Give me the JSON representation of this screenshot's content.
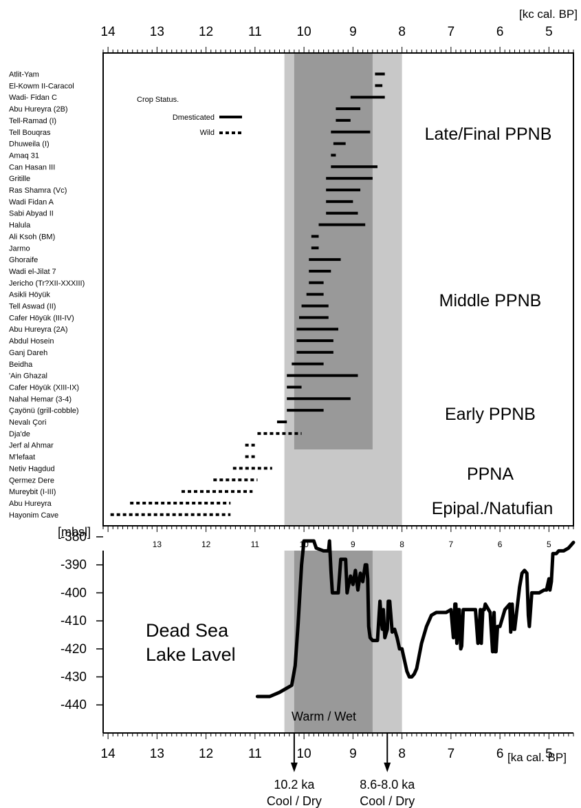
{
  "chart_data": [
    {
      "type": "range-bar",
      "top_axis": {
        "unit_label": "[kc cal. BP]",
        "ticks": [
          14,
          13,
          12,
          11,
          10,
          9,
          8,
          7,
          6,
          5
        ],
        "range": [
          14.1,
          4.5
        ],
        "reversed": true
      },
      "bottom_axis_ticks": [
        13,
        12,
        11,
        10,
        9,
        8,
        7,
        6,
        5
      ],
      "legend": {
        "title": "Crop Status.",
        "entries": [
          {
            "label": "Dmesticated",
            "style": "solid"
          },
          {
            "label": "Wild",
            "style": "dashed"
          }
        ]
      },
      "phases": [
        {
          "label": "Late/Final PPNB"
        },
        {
          "label": "Middle PPNB"
        },
        {
          "label": "Early PPNB"
        },
        {
          "label": "PPNA"
        },
        {
          "label": "Epipal./Natufian"
        }
      ],
      "shaded_bands": [
        {
          "from": 10.4,
          "to": 8.0,
          "color": "#c8c8c8"
        },
        {
          "from": 10.2,
          "to": 8.6,
          "color": "#999999",
          "extent": "upper"
        }
      ],
      "sites": [
        {
          "name": "Atlit-Yam",
          "start": 8.55,
          "end": 8.35,
          "status": "domesticated"
        },
        {
          "name": "El-Kowm II-Caracol",
          "start": 8.55,
          "end": 8.4,
          "status": "domesticated"
        },
        {
          "name": "Wadi- Fidan C",
          "start": 9.05,
          "end": 8.35,
          "status": "domesticated"
        },
        {
          "name": "Abu Hureyra (2B)",
          "start": 9.35,
          "end": 8.85,
          "status": "domesticated"
        },
        {
          "name": "Tell-Ramad (I)",
          "start": 9.35,
          "end": 9.05,
          "status": "domesticated"
        },
        {
          "name": "Tell Bouqras",
          "start": 9.45,
          "end": 8.65,
          "status": "domesticated"
        },
        {
          "name": "Dhuweila (I)",
          "start": 9.4,
          "end": 9.15,
          "status": "domesticated"
        },
        {
          "name": "Amaq 31",
          "start": 9.45,
          "end": 9.35,
          "status": "domesticated"
        },
        {
          "name": "Can Hasan III",
          "start": 9.45,
          "end": 8.5,
          "status": "domesticated"
        },
        {
          "name": "Gritille",
          "start": 9.55,
          "end": 8.6,
          "status": "domesticated"
        },
        {
          "name": "Ras Shamra (Vc)",
          "start": 9.55,
          "end": 8.85,
          "status": "domesticated"
        },
        {
          "name": "Wadi Fidan A",
          "start": 9.55,
          "end": 9.0,
          "status": "domesticated"
        },
        {
          "name": "Sabi Abyad II",
          "start": 9.55,
          "end": 8.9,
          "status": "domesticated"
        },
        {
          "name": "Halula",
          "start": 9.7,
          "end": 8.75,
          "status": "domesticated"
        },
        {
          "name": "Ali Ksoh (BM)",
          "start": 9.85,
          "end": 9.7,
          "status": "domesticated"
        },
        {
          "name": "Jarmo",
          "start": 9.85,
          "end": 9.7,
          "status": "domesticated"
        },
        {
          "name": "Ghoraife",
          "start": 9.9,
          "end": 9.25,
          "status": "domesticated"
        },
        {
          "name": "Wadi el-Jilat 7",
          "start": 9.9,
          "end": 9.45,
          "status": "domesticated"
        },
        {
          "name": "Jericho (Tr?XII-XXXIII)",
          "start": 9.9,
          "end": 9.6,
          "status": "domesticated"
        },
        {
          "name": "Asikli Höyük",
          "start": 9.95,
          "end": 9.6,
          "status": "domesticated"
        },
        {
          "name": "Tell Aswad (II)",
          "start": 10.05,
          "end": 9.5,
          "status": "domesticated"
        },
        {
          "name": "Cafer Höyük (III-IV)",
          "start": 10.1,
          "end": 9.5,
          "status": "domesticated"
        },
        {
          "name": "Abu Hureyra (2A)",
          "start": 10.15,
          "end": 9.3,
          "status": "domesticated"
        },
        {
          "name": "Abdul Hosein",
          "start": 10.15,
          "end": 9.4,
          "status": "domesticated"
        },
        {
          "name": "Ganj Dareh",
          "start": 10.15,
          "end": 9.4,
          "status": "domesticated"
        },
        {
          "name": "Beidha",
          "start": 10.25,
          "end": 9.6,
          "status": "domesticated"
        },
        {
          "name": "'Ain Ghazal",
          "start": 10.35,
          "end": 8.9,
          "status": "domesticated"
        },
        {
          "name": "Cafer Höyük (XIII-IX)",
          "start": 10.35,
          "end": 10.05,
          "status": "domesticated"
        },
        {
          "name": "Nahal Hemar (3-4)",
          "start": 10.35,
          "end": 9.05,
          "status": "domesticated"
        },
        {
          "name": "Çayönü (grill-cobble)",
          "start": 10.35,
          "end": 9.6,
          "status": "domesticated"
        },
        {
          "name": "Nevalı Çori",
          "start": 10.55,
          "end": 10.35,
          "status": "domesticated"
        },
        {
          "name": "Dja'de",
          "start": 10.95,
          "end": 10.05,
          "status": "wild"
        },
        {
          "name": "Jerf al Ahmar",
          "start": 11.2,
          "end": 11.0,
          "status": "wild"
        },
        {
          "name": "M'lefaat",
          "start": 11.2,
          "end": 11.0,
          "status": "wild"
        },
        {
          "name": "Netiv Hagdud",
          "start": 11.45,
          "end": 10.65,
          "status": "wild"
        },
        {
          "name": "Qermez Dere",
          "start": 11.85,
          "end": 10.95,
          "status": "wild"
        },
        {
          "name": "Mureybit (I-III)",
          "start": 12.5,
          "end": 11.05,
          "status": "wild"
        },
        {
          "name": "Abu Hureyra",
          "start": 13.55,
          "end": 11.5,
          "status": "wild"
        },
        {
          "name": "Hayonim Cave",
          "start": 13.95,
          "end": 11.5,
          "status": "wild"
        }
      ]
    },
    {
      "type": "line",
      "title": "Dead Sea\nLake Lavel",
      "ylabel": "[mbsl]",
      "xlabel": "[ka cal. BP]",
      "x_ticks": [
        14,
        13,
        12,
        11,
        10,
        9,
        8,
        7,
        6,
        5
      ],
      "y_ticks": [
        -380,
        -390,
        -400,
        -410,
        -420,
        -430,
        -440
      ],
      "xlim": [
        14.1,
        4.5
      ],
      "ylim": [
        -440,
        -377
      ],
      "band_label": "Warm / Wet",
      "series": [
        {
          "x": [
            10.95,
            10.7,
            10.5,
            10.35,
            10.25,
            10.18,
            10.12,
            10.05,
            10.0,
            9.95,
            9.85,
            9.8,
            9.75,
            9.6,
            9.5,
            9.48,
            9.45,
            9.42,
            9.3,
            9.25,
            9.15,
            9.12,
            9.1,
            9.05,
            9.0,
            8.95,
            8.9,
            8.85,
            8.8,
            8.75,
            8.72,
            8.7,
            8.68,
            8.65,
            8.6,
            8.5,
            8.45,
            8.42,
            8.4,
            8.38,
            8.35,
            8.3,
            8.28,
            8.25,
            8.2,
            8.15,
            8.1,
            8.05,
            8.0,
            7.95,
            7.9,
            7.85,
            7.8,
            7.75,
            7.7,
            7.6,
            7.5,
            7.4,
            7.3,
            7.2,
            7.1,
            7.0,
            6.95,
            6.92,
            6.9,
            6.88,
            6.85,
            6.83,
            6.8,
            6.78,
            6.75,
            6.72,
            6.7,
            6.6,
            6.5,
            6.45,
            6.42,
            6.4,
            6.38,
            6.35,
            6.32,
            6.3,
            6.2,
            6.15,
            6.12,
            6.1,
            6.08,
            6.05,
            6.0,
            5.9,
            5.8,
            5.78,
            5.75,
            5.72,
            5.7,
            5.6,
            5.55,
            5.5,
            5.45,
            5.42,
            5.4,
            5.35,
            5.3,
            5.2,
            5.1,
            5.05,
            5.0,
            4.98,
            4.95,
            4.92,
            4.9,
            4.85,
            4.8,
            4.7,
            4.6,
            4.5
          ],
          "y": [
            -437,
            -437,
            -435.5,
            -434,
            -433,
            -426,
            -411,
            -390,
            -378,
            -378,
            -377,
            -378,
            -384,
            -385,
            -385,
            -380,
            -392,
            -400,
            -400,
            -388,
            -388,
            -400,
            -398,
            -394,
            -397,
            -392,
            -399,
            -393,
            -396,
            -390,
            -390,
            -395,
            -412,
            -416,
            -417,
            -417,
            -403,
            -410,
            -413,
            -406,
            -416,
            -413,
            -403,
            -403,
            -414,
            -413,
            -416,
            -420,
            -420,
            -424,
            -428,
            -430,
            -430,
            -429,
            -427,
            -418,
            -412,
            -408,
            -407,
            -407,
            -407,
            -406,
            -416,
            -404,
            -404,
            -418,
            -406,
            -406,
            -420,
            -419,
            -406,
            -406,
            -406,
            -406,
            -406,
            -418,
            -411,
            -406,
            -418,
            -406,
            -406,
            -404,
            -407,
            -421,
            -407,
            -421,
            -421,
            -412,
            -412,
            -406,
            -404,
            -414,
            -404,
            -413,
            -413,
            -398,
            -393,
            -392,
            -393,
            -408,
            -412,
            -400,
            -400,
            -400,
            -399,
            -399,
            -395,
            -399,
            -396,
            -386,
            -386,
            -386,
            -385,
            -385,
            -384,
            -382
          ]
        }
      ]
    }
  ],
  "annotations": [
    {
      "x": 10.2,
      "line1": "10.2 ka",
      "line2": "Cool / Dry"
    },
    {
      "x": 8.3,
      "line1": "8.6-8.0 ka",
      "line2": "Cool / Dry"
    }
  ],
  "colors": {
    "band_light": "#c8c8c8",
    "band_dark": "#999999",
    "ink": "#000000"
  }
}
